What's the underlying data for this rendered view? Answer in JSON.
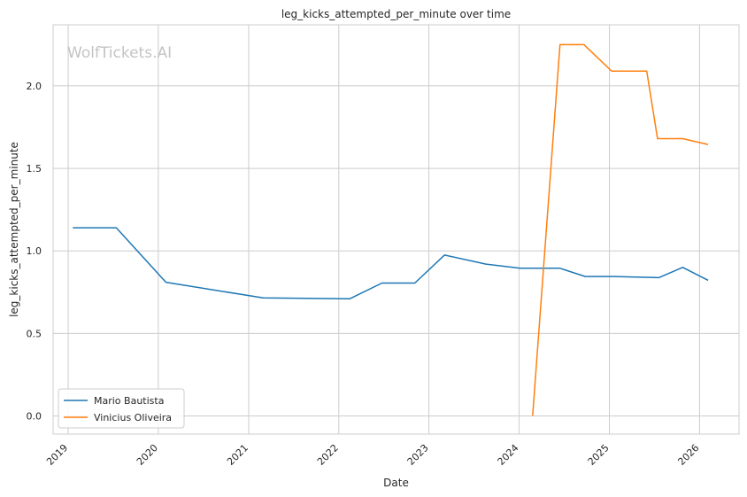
{
  "watermark": "WolfTickets.AI",
  "chart_data": {
    "type": "line",
    "title": "leg_kicks_attempted_per_minute over time",
    "xlabel": "Date",
    "ylabel": "leg_kicks_attempted_per_minute",
    "x_ticks": [
      "2019",
      "2020",
      "2021",
      "2022",
      "2023",
      "2024",
      "2025",
      "2026"
    ],
    "y_ticks": [
      "0.0",
      "0.5",
      "1.0",
      "1.5",
      "2.0"
    ],
    "ylim": [
      -0.11,
      2.37
    ],
    "xlim": [
      "2018-11-01",
      "2026-06-10"
    ],
    "grid": true,
    "legend_position": "lower-left",
    "series": [
      {
        "name": "Mario Bautista",
        "color": "#1f77b4",
        "points": [
          {
            "x": "2019-01-20",
            "y": 1.14
          },
          {
            "x": "2019-07-15",
            "y": 1.14
          },
          {
            "x": "2020-02-01",
            "y": 0.81
          },
          {
            "x": "2021-03-01",
            "y": 0.715
          },
          {
            "x": "2022-02-15",
            "y": 0.71
          },
          {
            "x": "2022-06-25",
            "y": 0.805
          },
          {
            "x": "2022-11-05",
            "y": 0.805
          },
          {
            "x": "2023-03-05",
            "y": 0.975
          },
          {
            "x": "2023-08-20",
            "y": 0.92
          },
          {
            "x": "2024-01-05",
            "y": 0.895
          },
          {
            "x": "2024-06-15",
            "y": 0.895
          },
          {
            "x": "2024-09-25",
            "y": 0.845
          },
          {
            "x": "2025-01-20",
            "y": 0.845
          },
          {
            "x": "2025-07-20",
            "y": 0.838
          },
          {
            "x": "2025-10-25",
            "y": 0.9
          },
          {
            "x": "2026-02-05",
            "y": 0.822
          }
        ]
      },
      {
        "name": "Vinicius Oliveira",
        "color": "#ff7f0e",
        "points": [
          {
            "x": "2024-02-25",
            "y": 0.0
          },
          {
            "x": "2024-06-15",
            "y": 2.25
          },
          {
            "x": "2024-09-20",
            "y": 2.25
          },
          {
            "x": "2025-01-10",
            "y": 2.09
          },
          {
            "x": "2025-06-01",
            "y": 2.09
          },
          {
            "x": "2025-07-15",
            "y": 1.68
          },
          {
            "x": "2025-10-25",
            "y": 1.68
          },
          {
            "x": "2026-02-05",
            "y": 1.645
          }
        ]
      }
    ]
  }
}
